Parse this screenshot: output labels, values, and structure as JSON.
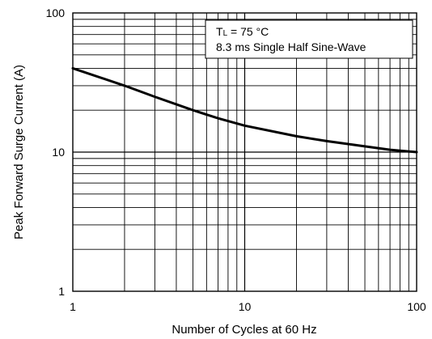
{
  "chart_data": {
    "type": "line",
    "title": "",
    "xlabel": "Number of Cycles at 60 Hz",
    "ylabel": "Peak Forward Surge Current (A)",
    "x_scale": "log",
    "y_scale": "log",
    "xlim": [
      1,
      100
    ],
    "ylim": [
      1,
      100
    ],
    "x_ticks": [
      "1",
      "10",
      "100"
    ],
    "y_ticks": [
      "1",
      "10",
      "100"
    ],
    "grid": true,
    "series": [
      {
        "color": "#000000",
        "x": [
          1,
          2,
          3,
          5,
          7,
          10,
          20,
          30,
          50,
          70,
          100
        ],
        "y": [
          40,
          30,
          25,
          20,
          17.5,
          15.5,
          13,
          12,
          11,
          10.4,
          10
        ]
      }
    ],
    "annotations": {
      "line1_main": "T",
      "line1_sub": "L",
      "line1_rest": " = 75 °C",
      "line2": "8.3 ms Single Half Sine-Wave"
    }
  }
}
